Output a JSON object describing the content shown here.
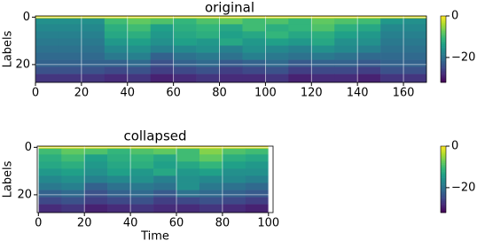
{
  "chart_data": [
    {
      "type": "heatmap",
      "title": "original",
      "ylabel": "Labels",
      "colormap": "viridis",
      "grid": true,
      "xbins": [
        0,
        10,
        20,
        30,
        40,
        50,
        60,
        70,
        80,
        90,
        100,
        110,
        120,
        130,
        140,
        150,
        160,
        170
      ],
      "ybins": [
        -0.5,
        0.5,
        3,
        6,
        9,
        12,
        15,
        18,
        21,
        24,
        27.5
      ],
      "xlim": [
        0,
        170
      ],
      "ylim": [
        27.5,
        -0.5
      ],
      "xticks": [
        0,
        20,
        40,
        60,
        80,
        100,
        120,
        140,
        160
      ],
      "yticks": [
        0,
        20
      ],
      "clim": [
        -32,
        0
      ],
      "cticks": [
        0,
        {
          "value": -20,
          "label": "−20"
        }
      ],
      "z": [
        [
          -1,
          -1,
          -1,
          -1,
          -1,
          -1,
          -1,
          -1,
          -1,
          -1,
          -1,
          -1,
          -1,
          -1,
          -1,
          -1,
          -1
        ],
        [
          -16,
          -16,
          -16,
          -10,
          -8,
          -9,
          -11,
          -9,
          -8,
          -10,
          -9,
          -11,
          -8,
          -9,
          -10,
          -15,
          -16
        ],
        [
          -17,
          -17,
          -17,
          -12,
          -10,
          -14,
          -12,
          -11,
          -13,
          -10,
          -12,
          -11,
          -9,
          -12,
          -13,
          -17,
          -17
        ],
        [
          -18,
          -18,
          -18,
          -13,
          -12,
          -15,
          -13,
          -12,
          -14,
          -13,
          -11,
          -13,
          -12,
          -14,
          -15,
          -18,
          -18
        ],
        [
          -19,
          -19,
          -19,
          -15,
          -14,
          -16,
          -14,
          -15,
          -13,
          -15,
          -14,
          -15,
          -13,
          -16,
          -16,
          -19,
          -19
        ],
        [
          -20,
          -20,
          -20,
          -17,
          -16,
          -18,
          -17,
          -16,
          -18,
          -16,
          -17,
          -18,
          -16,
          -17,
          -18,
          -20,
          -20
        ],
        [
          -21,
          -21,
          -21,
          -19,
          -18,
          -22,
          -20,
          -19,
          -20,
          -18,
          -19,
          -20,
          -19,
          -20,
          -21,
          -21,
          -21
        ],
        [
          -22,
          -22,
          -22,
          -22,
          -21,
          -24,
          -22,
          -21,
          -23,
          -22,
          -21,
          -23,
          -22,
          -22,
          -23,
          -22,
          -22
        ],
        [
          -24,
          -24,
          -24,
          -25,
          -24,
          -26,
          -25,
          -24,
          -26,
          -25,
          -24,
          -26,
          -25,
          -25,
          -26,
          -24,
          -24
        ],
        [
          -27,
          -27,
          -27,
          -28,
          -27,
          -29,
          -28,
          -27,
          -28,
          -28,
          -27,
          -29,
          -28,
          -28,
          -29,
          -27,
          -27
        ]
      ]
    },
    {
      "type": "heatmap",
      "title": "collapsed",
      "ylabel": "Labels",
      "xlabel": "Time",
      "colormap": "viridis",
      "grid": true,
      "xbins": [
        0,
        10,
        20,
        30,
        40,
        50,
        60,
        70,
        80,
        90,
        100
      ],
      "ybins": [
        -0.5,
        0.5,
        3,
        6,
        9,
        12,
        15,
        18,
        21,
        24,
        27.5
      ],
      "xlim": [
        -0.5,
        102
      ],
      "ylim": [
        27.5,
        -0.5
      ],
      "xticks": [
        0,
        20,
        40,
        60,
        80,
        100
      ],
      "yticks": [
        0,
        20
      ],
      "clim": [
        -32,
        0
      ],
      "cticks": [
        0,
        {
          "value": -20,
          "label": "−20"
        }
      ],
      "z": [
        [
          -1,
          -1,
          -1,
          -1,
          -1,
          -1,
          -1,
          -1,
          -1,
          -1
        ],
        [
          -10,
          -8,
          -9,
          -11,
          -9,
          -8,
          -10,
          -6,
          -9,
          -10
        ],
        [
          -12,
          -10,
          -14,
          -12,
          -11,
          -13,
          -10,
          -8,
          -12,
          -13
        ],
        [
          -13,
          -12,
          -15,
          -13,
          -12,
          -14,
          -13,
          -11,
          -14,
          -15
        ],
        [
          -15,
          -14,
          -16,
          -14,
          -15,
          -13,
          -15,
          -14,
          -16,
          -16
        ],
        [
          -17,
          -16,
          -18,
          -17,
          -16,
          -18,
          -16,
          -17,
          -17,
          -18
        ],
        [
          -19,
          -18,
          -22,
          -20,
          -19,
          -20,
          -16,
          -19,
          -20,
          -21
        ],
        [
          -22,
          -21,
          -24,
          -22,
          -21,
          -23,
          -20,
          -21,
          -22,
          -23
        ],
        [
          -25,
          -24,
          -26,
          -25,
          -24,
          -26,
          -25,
          -24,
          -25,
          -26
        ],
        [
          -28,
          -27,
          -29,
          -28,
          -27,
          -28,
          -28,
          -27,
          -28,
          -29
        ]
      ]
    }
  ]
}
